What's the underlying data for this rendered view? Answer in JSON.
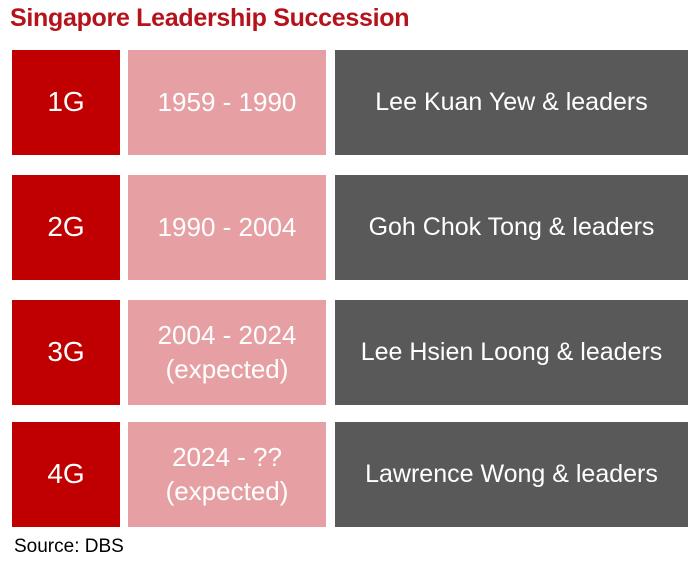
{
  "title": "Singapore Leadership Succession",
  "rows": [
    {
      "generation": "1G",
      "period": [
        "1959 - 1990"
      ],
      "leaders": "Lee Kuan Yew & leaders"
    },
    {
      "generation": "2G",
      "period": [
        "1990 - 2004"
      ],
      "leaders": "Goh Chok Tong & leaders"
    },
    {
      "generation": "3G",
      "period": [
        "2004 - 2024",
        "(expected)"
      ],
      "leaders": "Lee Hsien Loong & leaders"
    },
    {
      "generation": "4G",
      "period": [
        "2024 - ??",
        "(expected)"
      ],
      "leaders": "Lawrence Wong & leaders"
    }
  ],
  "source": "Source: DBS"
}
